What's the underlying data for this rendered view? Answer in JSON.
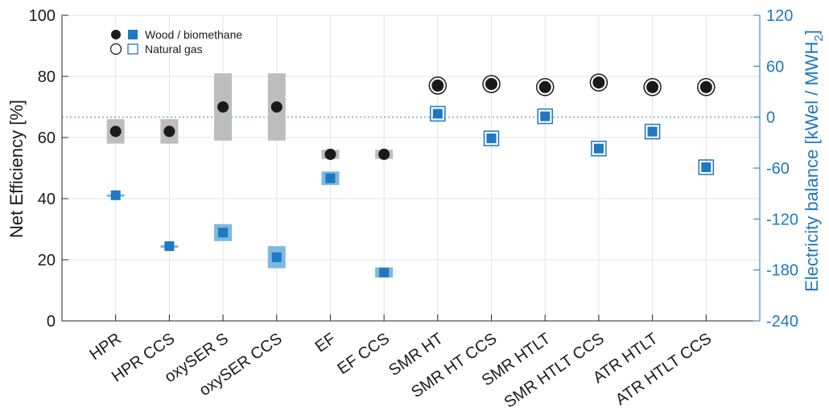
{
  "chart_data": {
    "type": "scatter",
    "categories": [
      "HPR",
      "HPR CCS",
      "oxySER S",
      "oxySER CCS",
      "EF",
      "EF CCS",
      "SMR HT",
      "SMR HT CCS",
      "SMR HTLT",
      "SMR HTLT CCS",
      "ATR HTLT",
      "ATR HTLT CCS"
    ],
    "ylabel_left": "Net Efficiency [%]",
    "ylabel_right_main": "Electricity balance [kWel / MWH",
    "ylabel_right_sub": "2",
    "ylabel_right_end": "]",
    "ylim_left": [
      0,
      100
    ],
    "ylim_right": [
      -240,
      120
    ],
    "yticks_left": [
      0,
      20,
      40,
      60,
      80,
      100
    ],
    "yticks_right": [
      -240,
      -180,
      -120,
      -60,
      0,
      60,
      120
    ],
    "grid": true,
    "legend": {
      "position": "top-left",
      "entries": [
        {
          "label": "Wood / biomethane",
          "marker": "filled"
        },
        {
          "label": "Natural gas",
          "marker": "open"
        }
      ]
    },
    "efficiency": [
      62,
      62,
      70,
      70,
      54.5,
      54.5,
      77,
      77.5,
      76.5,
      78,
      76.5,
      76.5
    ],
    "efficiency_range": [
      [
        58,
        66
      ],
      [
        58,
        66
      ],
      [
        59,
        81
      ],
      [
        59,
        81
      ],
      [
        53,
        56
      ],
      [
        53,
        56
      ],
      null,
      null,
      null,
      null,
      null,
      null
    ],
    "electricity": [
      -92,
      -152,
      -136,
      -165,
      -72,
      -183,
      4,
      -25,
      1,
      -37,
      -17,
      -59
    ],
    "electricity_range": [
      [
        -93,
        -91
      ],
      [
        -153,
        -151
      ],
      [
        -146,
        -126
      ],
      [
        -178,
        -152
      ],
      [
        -80,
        -64
      ],
      [
        -189,
        -177
      ],
      null,
      null,
      null,
      null,
      null,
      null
    ],
    "feedstock": [
      "wood",
      "wood",
      "wood",
      "wood",
      "wood",
      "wood",
      "natural-gas",
      "natural-gas",
      "natural-gas",
      "natural-gas",
      "natural-gas",
      "natural-gas"
    ],
    "zero_line_right": 0,
    "colors": {
      "primary": "#1f78c1",
      "light": "#7db8e0",
      "grey_band": "#bdbdbd",
      "black": "#1a1a1a",
      "zero_line": "#4a8fd0"
    }
  }
}
